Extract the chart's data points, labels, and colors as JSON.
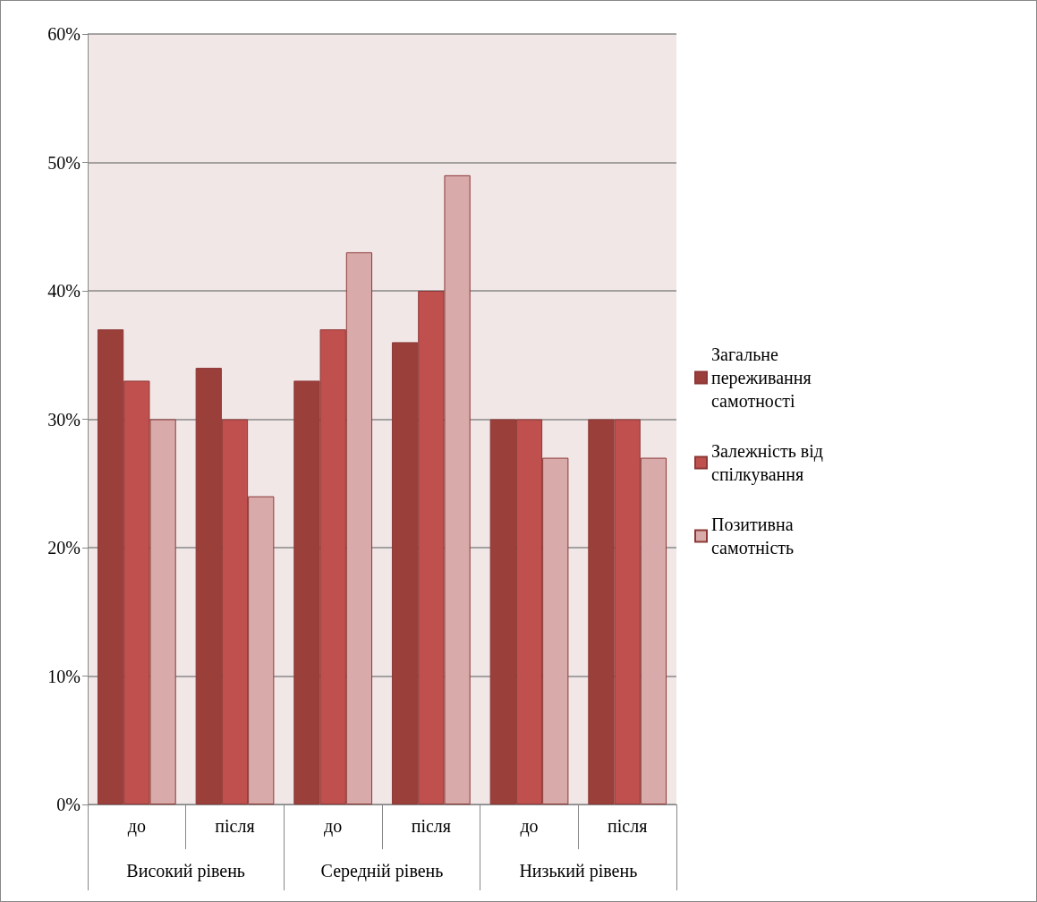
{
  "chart_data": {
    "type": "bar",
    "categories": [
      "до",
      "після",
      "до",
      "після",
      "до",
      "після"
    ],
    "annotations": [
      "Високий рівень",
      "Середній рівень",
      "Низький рівень"
    ],
    "series": [
      {
        "name": "Загальне переживання самотності",
        "color": "#9b3f3b",
        "values": [
          37,
          34,
          33,
          36,
          30,
          30
        ]
      },
      {
        "name": "Залежність від спілкування",
        "color": "#c0504d",
        "values": [
          33,
          30,
          37,
          40,
          30,
          30
        ]
      },
      {
        "name": "Позитивна самотність",
        "color": "#d9aaaa",
        "values": [
          30,
          24,
          43,
          49,
          27,
          27
        ]
      }
    ],
    "ylim": [
      0,
      60
    ],
    "yticks": [
      {
        "value": 0,
        "label": "0%"
      },
      {
        "value": 10,
        "label": "10%"
      },
      {
        "value": 20,
        "label": "20%"
      },
      {
        "value": 30,
        "label": "30%"
      },
      {
        "value": 40,
        "label": "40%"
      },
      {
        "value": 50,
        "label": "50%"
      },
      {
        "value": 60,
        "label": "60%"
      }
    ],
    "grid": "y",
    "legend": "right"
  }
}
